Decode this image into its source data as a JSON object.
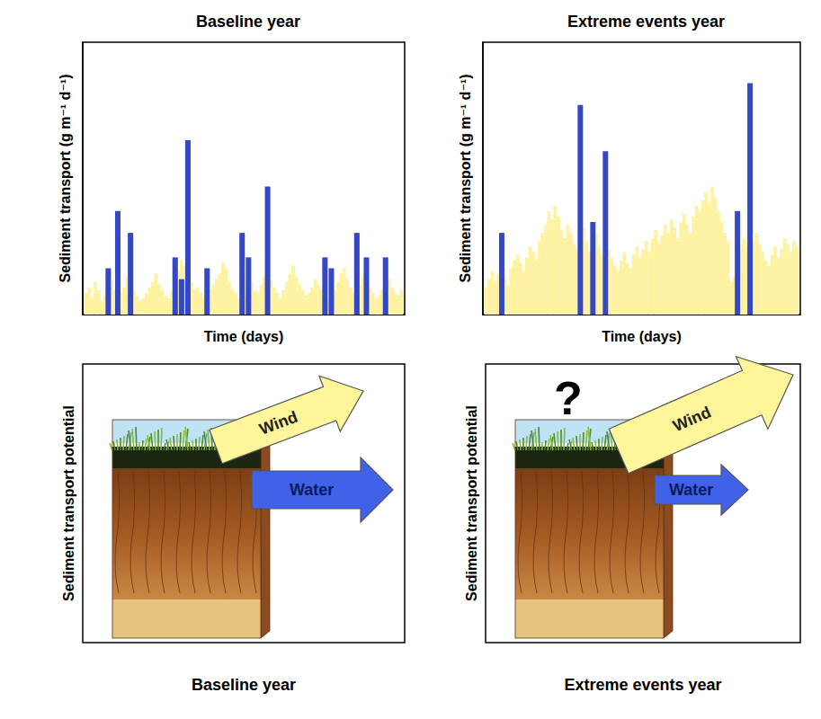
{
  "chart_data": [
    {
      "type": "bar",
      "title": "Baseline year",
      "x_label": "Time (days)",
      "y_label": "Sediment transport (g m⁻¹ d⁻¹)",
      "tick_labels": false,
      "xlim": [
        0,
        101
      ],
      "ylim": [
        0,
        100
      ],
      "x": [
        1,
        2,
        3,
        4,
        5,
        6,
        7,
        8,
        9,
        10,
        11,
        12,
        13,
        14,
        15,
        16,
        17,
        18,
        19,
        20,
        21,
        22,
        23,
        24,
        25,
        26,
        27,
        28,
        29,
        30,
        31,
        32,
        33,
        34,
        35,
        36,
        37,
        38,
        39,
        40,
        41,
        42,
        43,
        44,
        45,
        46,
        47,
        48,
        49,
        50,
        51,
        52,
        53,
        54,
        55,
        56,
        57,
        58,
        59,
        60,
        61,
        62,
        63,
        64,
        65,
        66,
        67,
        68,
        69,
        70,
        71,
        72,
        73,
        74,
        75,
        76,
        77,
        78,
        79,
        80,
        81,
        82,
        83,
        84,
        85,
        86,
        87,
        88,
        89,
        90,
        91,
        92,
        93,
        94,
        95,
        96,
        97,
        98,
        99,
        100
      ],
      "series": [
        {
          "color": "#fff2a3",
          "values": [
            8,
            10,
            6,
            12,
            9,
            5,
            7,
            11,
            13,
            9,
            6,
            8,
            10,
            14,
            12,
            9,
            7,
            5,
            6,
            8,
            10,
            12,
            15,
            11,
            9,
            7,
            6,
            9,
            13,
            16,
            20,
            18,
            14,
            12,
            9,
            10,
            8,
            6,
            7,
            9,
            11,
            13,
            15,
            19,
            17,
            12,
            9,
            8,
            6,
            5,
            7,
            10,
            12,
            9,
            8,
            11,
            14,
            16,
            13,
            10,
            8,
            6,
            9,
            12,
            15,
            18,
            14,
            11,
            9,
            7,
            8,
            10,
            13,
            11,
            9,
            6,
            5,
            7,
            9,
            12,
            15,
            17,
            13,
            10,
            8,
            9,
            11,
            14,
            12,
            10,
            8,
            6,
            7,
            9,
            11,
            13,
            10,
            8,
            7,
            9
          ]
        },
        {
          "color": "#3447c4",
          "values": [
            null,
            null,
            null,
            null,
            null,
            null,
            null,
            17,
            null,
            null,
            38,
            null,
            null,
            null,
            30,
            null,
            null,
            null,
            null,
            null,
            null,
            null,
            null,
            null,
            null,
            null,
            null,
            null,
            21,
            null,
            13,
            null,
            64,
            null,
            null,
            null,
            null,
            null,
            17,
            null,
            null,
            null,
            null,
            null,
            null,
            null,
            null,
            null,
            null,
            30,
            null,
            21,
            null,
            null,
            null,
            null,
            null,
            47,
            null,
            null,
            null,
            null,
            null,
            null,
            null,
            null,
            null,
            null,
            null,
            null,
            null,
            null,
            null,
            null,
            null,
            21,
            null,
            17,
            null,
            null,
            null,
            null,
            null,
            null,
            null,
            30,
            null,
            null,
            21,
            null,
            null,
            null,
            null,
            null,
            21,
            null,
            null,
            null,
            null,
            null
          ]
        }
      ]
    },
    {
      "type": "bar",
      "title": "Extreme events year",
      "x_label": "Time (days)",
      "y_label": "Sediment transport (g m⁻¹ d⁻¹)",
      "tick_labels": false,
      "xlim": [
        0,
        101
      ],
      "ylim": [
        0,
        100
      ],
      "x": [
        1,
        2,
        3,
        4,
        5,
        6,
        7,
        8,
        9,
        10,
        11,
        12,
        13,
        14,
        15,
        16,
        17,
        18,
        19,
        20,
        21,
        22,
        23,
        24,
        25,
        26,
        27,
        28,
        29,
        30,
        31,
        32,
        33,
        34,
        35,
        36,
        37,
        38,
        39,
        40,
        41,
        42,
        43,
        44,
        45,
        46,
        47,
        48,
        49,
        50,
        51,
        52,
        53,
        54,
        55,
        56,
        57,
        58,
        59,
        60,
        61,
        62,
        63,
        64,
        65,
        66,
        67,
        68,
        69,
        70,
        71,
        72,
        73,
        74,
        75,
        76,
        77,
        78,
        79,
        80,
        81,
        82,
        83,
        84,
        85,
        86,
        87,
        88,
        89,
        90,
        91,
        92,
        93,
        94,
        95,
        96,
        97,
        98,
        99,
        100
      ],
      "series": [
        {
          "color": "#fff2a3",
          "values": [
            10,
            13,
            16,
            12,
            15,
            18,
            14,
            11,
            17,
            20,
            22,
            19,
            16,
            21,
            25,
            23,
            20,
            27,
            30,
            33,
            38,
            35,
            40,
            36,
            31,
            28,
            33,
            30,
            26,
            24,
            29,
            32,
            27,
            23,
            26,
            30,
            25,
            22,
            19,
            24,
            21,
            18,
            16,
            20,
            23,
            19,
            17,
            22,
            25,
            21,
            24,
            27,
            23,
            28,
            31,
            26,
            29,
            33,
            30,
            35,
            32,
            28,
            34,
            37,
            33,
            30,
            36,
            40,
            38,
            42,
            45,
            41,
            47,
            43,
            38,
            34,
            30,
            27,
            12,
            14,
            16,
            24,
            28,
            25,
            22,
            27,
            30,
            26,
            23,
            20,
            18,
            22,
            25,
            21,
            24,
            28,
            26,
            23,
            27,
            25
          ]
        },
        {
          "color": "#3447c4",
          "values": [
            null,
            null,
            null,
            null,
            null,
            30,
            null,
            null,
            null,
            null,
            null,
            null,
            null,
            null,
            null,
            null,
            null,
            null,
            null,
            null,
            null,
            null,
            null,
            null,
            null,
            null,
            null,
            null,
            null,
            null,
            77,
            null,
            null,
            null,
            34,
            null,
            null,
            null,
            60,
            null,
            null,
            null,
            null,
            null,
            null,
            null,
            null,
            null,
            null,
            null,
            null,
            null,
            null,
            null,
            null,
            null,
            null,
            null,
            null,
            null,
            null,
            null,
            null,
            null,
            null,
            null,
            null,
            null,
            null,
            null,
            null,
            null,
            null,
            null,
            null,
            null,
            null,
            null,
            null,
            null,
            38,
            null,
            null,
            null,
            85,
            null,
            null,
            null,
            null,
            null,
            null,
            null,
            null,
            null,
            null,
            null,
            null,
            null,
            null,
            null
          ]
        }
      ]
    }
  ],
  "diagrams": [
    {
      "title": "Baseline year",
      "y_label": "Sediment transport potential",
      "arrows": [
        "Wind",
        "Water"
      ]
    },
    {
      "title": "Extreme events year",
      "y_label": "Sediment transport potential",
      "annotation": "?",
      "arrows": [
        "Wind",
        "Water"
      ]
    }
  ]
}
